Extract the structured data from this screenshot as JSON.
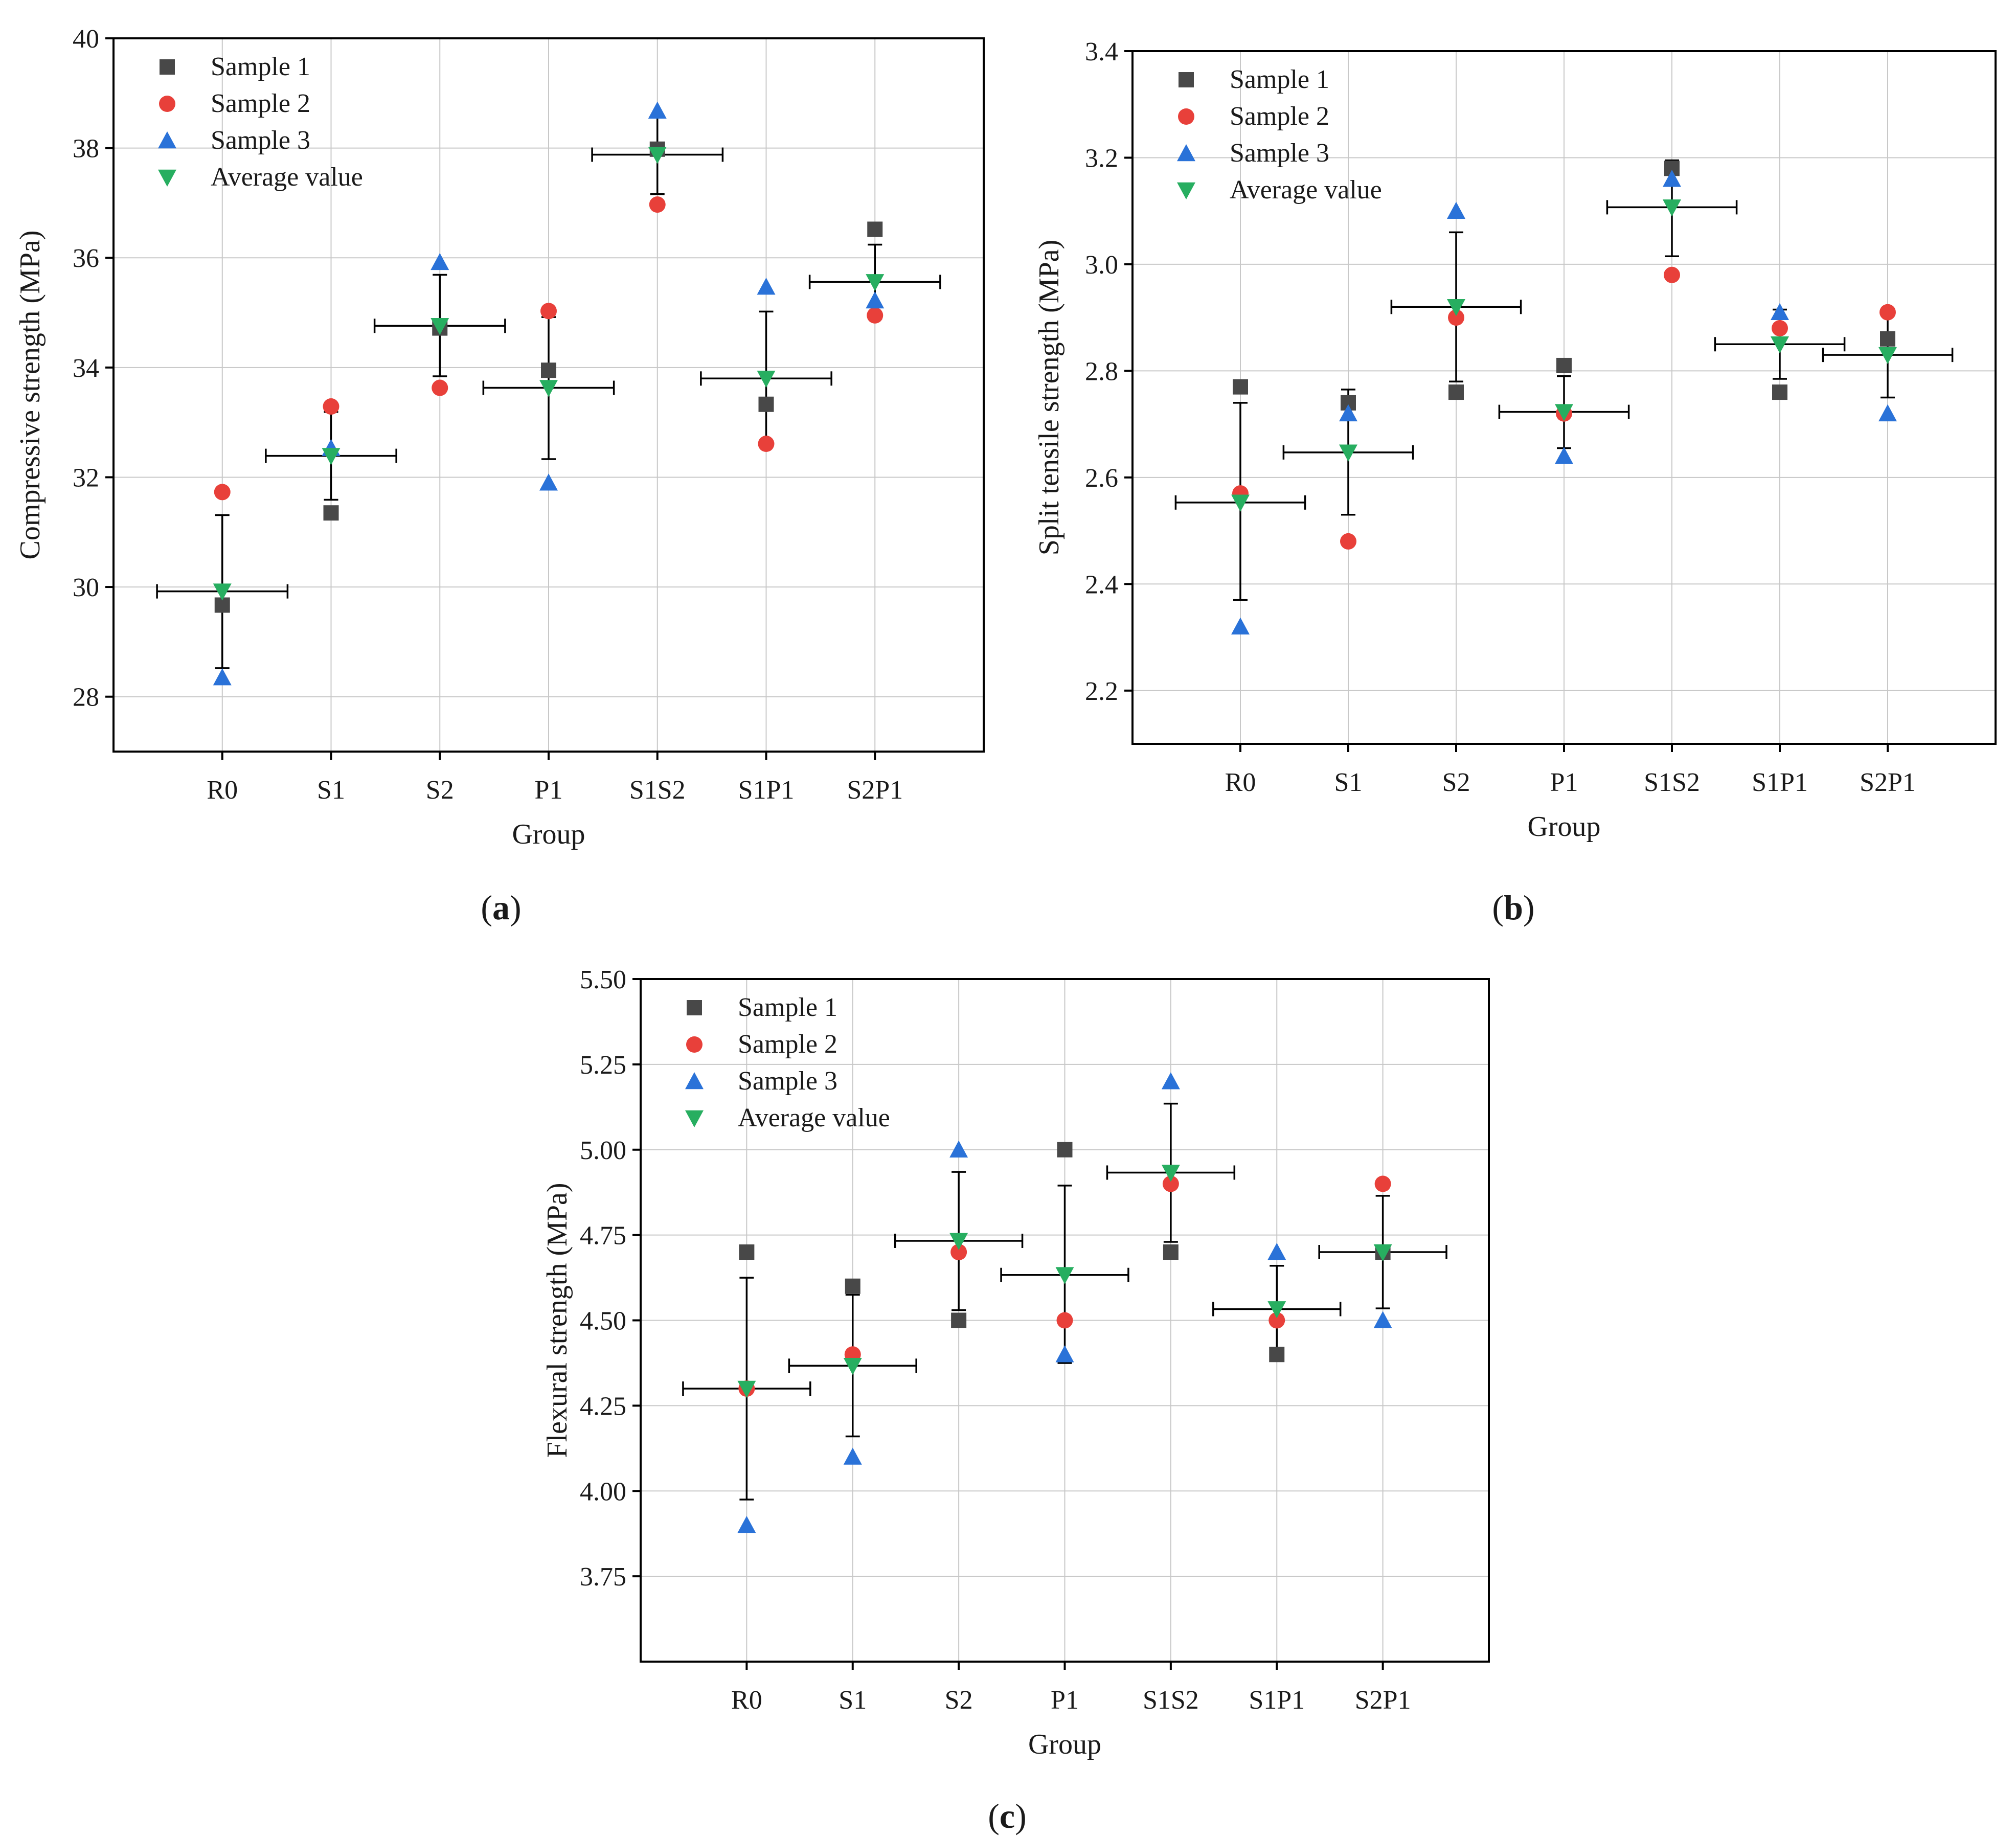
{
  "figure": {
    "colors": {
      "sample1": "#484848",
      "sample2": "#e8403a",
      "sample3": "#2a72d8",
      "average": "#27ae60",
      "grid": "#c8c8c8",
      "axis": "#000000"
    }
  },
  "chart_data": [
    {
      "id": "a",
      "caption_letter": "a",
      "type": "scatter",
      "xlabel": "Group",
      "ylabel": "Compressive strength (MPa)",
      "categories": [
        "R0",
        "S1",
        "S2",
        "P1",
        "S1S2",
        "S1P1",
        "S2P1"
      ],
      "ylim": [
        27,
        40
      ],
      "yticks": [
        "28",
        "30",
        "32",
        "34",
        "36",
        "38",
        "40"
      ],
      "grid": true,
      "legend_position": "top-left",
      "series": [
        {
          "name": "Sample 1",
          "marker": "square",
          "values": [
            29.67,
            31.35,
            34.72,
            33.95,
            37.98,
            33.33,
            36.52
          ]
        },
        {
          "name": "Sample 2",
          "marker": "circle",
          "values": [
            31.73,
            33.29,
            33.63,
            35.03,
            36.97,
            32.61,
            34.95
          ]
        },
        {
          "name": "Sample 3",
          "marker": "triangle-up",
          "values": [
            28.35,
            32.53,
            35.92,
            31.9,
            38.68,
            35.47,
            35.22
          ]
        },
        {
          "name": "Average value",
          "marker": "triangle-down",
          "values": [
            29.92,
            32.39,
            34.76,
            33.63,
            37.88,
            33.8,
            35.56
          ]
        }
      ],
      "error_bars": [
        {
          "lower": 28.52,
          "upper": 31.31
        },
        {
          "lower": 31.59,
          "upper": 33.19
        },
        {
          "lower": 33.84,
          "upper": 35.69
        },
        {
          "lower": 32.33,
          "upper": 34.92
        },
        {
          "lower": 37.16,
          "upper": 38.59
        },
        {
          "lower": 32.59,
          "upper": 35.02
        },
        {
          "lower": 34.89,
          "upper": 36.24
        }
      ]
    },
    {
      "id": "b",
      "caption_letter": "b",
      "type": "scatter",
      "xlabel": "Group",
      "ylabel": "Split tensile strength (MPa)",
      "categories": [
        "R0",
        "S1",
        "S2",
        "P1",
        "S1S2",
        "S1P1",
        "S2P1"
      ],
      "ylim": [
        2.1,
        3.4
      ],
      "yticks": [
        "2.2",
        "2.4",
        "2.6",
        "2.8",
        "3.0",
        "3.2",
        "3.4"
      ],
      "grid": true,
      "legend_position": "top-left",
      "series": [
        {
          "name": "Sample 1",
          "marker": "square",
          "values": [
            2.77,
            2.74,
            2.76,
            2.81,
            3.18,
            2.76,
            2.86
          ]
        },
        {
          "name": "Sample 2",
          "marker": "circle",
          "values": [
            2.57,
            2.48,
            2.9,
            2.72,
            2.98,
            2.88,
            2.91
          ]
        },
        {
          "name": "Sample 3",
          "marker": "triangle-up",
          "values": [
            2.32,
            2.72,
            3.1,
            2.64,
            3.16,
            2.91,
            2.72
          ]
        },
        {
          "name": "Average value",
          "marker": "triangle-down",
          "values": [
            2.553,
            2.647,
            2.92,
            2.723,
            3.107,
            2.85,
            2.83
          ]
        }
      ],
      "error_bars": [
        {
          "lower": 2.37,
          "upper": 2.74
        },
        {
          "lower": 2.53,
          "upper": 2.765
        },
        {
          "lower": 2.78,
          "upper": 3.06
        },
        {
          "lower": 2.655,
          "upper": 2.79
        },
        {
          "lower": 3.015,
          "upper": 3.195
        },
        {
          "lower": 2.785,
          "upper": 2.915
        },
        {
          "lower": 2.75,
          "upper": 2.91
        }
      ]
    },
    {
      "id": "c",
      "caption_letter": "c",
      "type": "scatter",
      "xlabel": "Group",
      "ylabel": "Flexural strength (MPa)",
      "categories": [
        "R0",
        "S1",
        "S2",
        "P1",
        "S1S2",
        "S1P1",
        "S2P1"
      ],
      "ylim": [
        3.5,
        5.5
      ],
      "yticks": [
        "3.75",
        "4.00",
        "4.25",
        "4.50",
        "4.75",
        "5.00",
        "5.25",
        "5.50"
      ],
      "grid": true,
      "legend_position": "top-left",
      "series": [
        {
          "name": "Sample 1",
          "marker": "square",
          "values": [
            4.7,
            4.6,
            4.5,
            5.0,
            4.7,
            4.4,
            4.7
          ]
        },
        {
          "name": "Sample 2",
          "marker": "circle",
          "values": [
            4.3,
            4.4,
            4.7,
            4.5,
            4.9,
            4.5,
            4.9
          ]
        },
        {
          "name": "Sample 3",
          "marker": "triangle-up",
          "values": [
            3.9,
            4.1,
            5.0,
            4.4,
            5.2,
            4.7,
            4.5
          ]
        },
        {
          "name": "Average value",
          "marker": "triangle-down",
          "values": [
            4.3,
            4.367,
            4.733,
            4.633,
            4.933,
            4.533,
            4.7
          ]
        }
      ],
      "error_bars": [
        {
          "lower": 3.975,
          "upper": 4.625
        },
        {
          "lower": 4.16,
          "upper": 4.575
        },
        {
          "lower": 4.53,
          "upper": 4.935
        },
        {
          "lower": 4.375,
          "upper": 4.895
        },
        {
          "lower": 4.73,
          "upper": 5.135
        },
        {
          "lower": 4.405,
          "upper": 4.66
        },
        {
          "lower": 4.535,
          "upper": 4.865
        }
      ]
    }
  ]
}
